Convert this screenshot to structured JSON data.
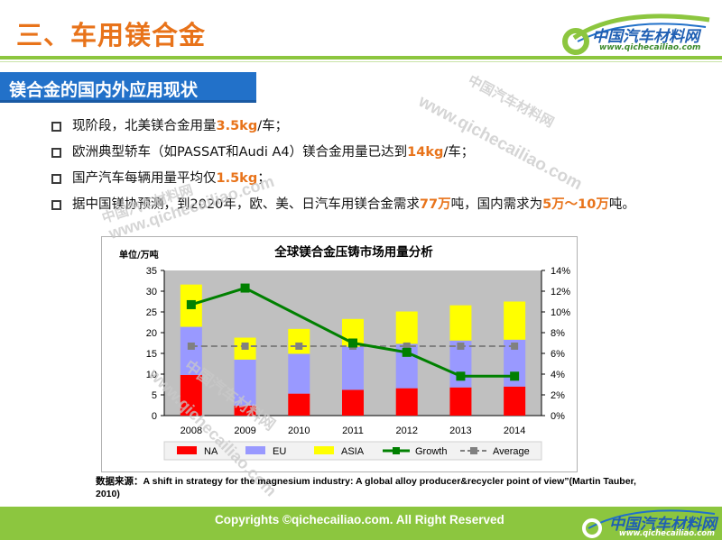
{
  "title": "三、车用镁合金",
  "logo": {
    "main": "中国汽车材料网",
    "sub": "www.qichecailiao.com"
  },
  "section": "镁合金的国内外应用现状",
  "bullets": [
    {
      "pre": "现阶段，北美镁合金用量",
      "hl": "3.5kg",
      "post": "/车；"
    },
    {
      "pre": "欧洲典型轿车（如PASSAT和Audi A4）镁合金用量已达到",
      "hl": "14kg",
      "post": "/车；"
    },
    {
      "pre": "国产汽车每辆用量平均仅",
      "hl": "1.5kg",
      "post": "；"
    },
    {
      "pre": "据中国镁协预测，到2020年，欧、美、日汽车用镁合金需求",
      "hl": "77万",
      "mid": "吨，国内需求为",
      "hl2": "5万～10万",
      "post": "吨。"
    }
  ],
  "watermark": {
    "cn": "中国汽车材料网",
    "url": "www.qichecailiao.com"
  },
  "chart_data": {
    "type": "bar",
    "title": "全球镁合金压铸市场用量分析",
    "ylabel": "单位/万吨",
    "categories": [
      "2008",
      "2009",
      "2010",
      "2011",
      "2012",
      "2013",
      "2014"
    ],
    "series": [
      {
        "name": "NA",
        "color": "#ff0000",
        "values": [
          9.8,
          2.4,
          5.3,
          6.2,
          6.6,
          6.8,
          7.0
        ]
      },
      {
        "name": "EU",
        "color": "#9999ff",
        "values": [
          11.6,
          11.1,
          9.6,
          10.4,
          10.7,
          11.3,
          11.3
        ]
      },
      {
        "name": "ASIA",
        "color": "#ffff00",
        "values": [
          10.2,
          5.3,
          6.0,
          6.7,
          7.8,
          8.5,
          9.2
        ]
      }
    ],
    "growth": {
      "name": "Growth",
      "color": "#008000",
      "values": [
        10.7,
        12.3,
        null,
        7.0,
        6.1,
        3.8,
        3.8
      ]
    },
    "average": {
      "name": "Average",
      "color": "#808080",
      "value": 6.7
    },
    "ylim": [
      0,
      35
    ],
    "yticks": [
      0,
      5,
      10,
      15,
      20,
      25,
      30,
      35
    ],
    "y2lim": [
      0,
      14
    ],
    "y2ticks": [
      "0%",
      "2%",
      "4%",
      "6%",
      "8%",
      "10%",
      "12%",
      "14%"
    ],
    "legend_order": [
      "NA",
      "EU",
      "ASIA",
      "Growth",
      "Average"
    ]
  },
  "source": "数据来源：A shift in strategy for the magnesium industry: A global alloy producer&recycler point of view”(Martin Tauber, 2010)",
  "footer": {
    "copyright": "Copyrights ©qichecailiao.com. All Right Reserved",
    "logo_main": "中国汽车材料网",
    "logo_sub": "www.qichecailiao.com"
  }
}
